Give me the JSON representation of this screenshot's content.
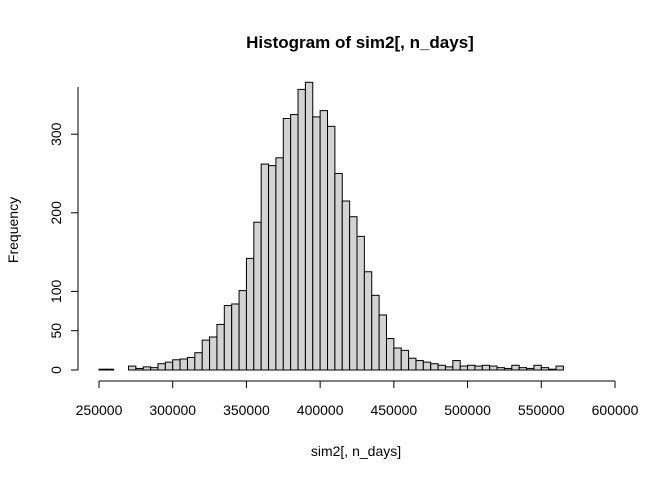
{
  "chart_data": {
    "type": "bar",
    "title": "Histogram of sim2[, n_days]",
    "xlabel": "sim2[, n_days]",
    "ylabel": "Frequency",
    "xlim": [
      250000,
      600000
    ],
    "ylim": [
      0,
      360
    ],
    "x_ticks": [
      250000,
      300000,
      350000,
      400000,
      450000,
      500000,
      550000,
      600000
    ],
    "y_ticks": [
      0,
      50,
      100,
      200,
      300
    ],
    "bin_width": 5000,
    "bin_start": 250000,
    "counts": [
      1,
      1,
      0,
      0,
      5,
      2,
      4,
      3,
      8,
      10,
      13,
      14,
      16,
      22,
      38,
      42,
      58,
      82,
      84,
      101,
      142,
      188,
      262,
      260,
      270,
      320,
      325,
      357,
      366,
      322,
      330,
      310,
      250,
      215,
      195,
      170,
      125,
      95,
      70,
      40,
      28,
      25,
      15,
      12,
      10,
      8,
      6,
      4,
      12,
      5,
      6,
      5,
      6,
      5,
      3,
      2,
      6,
      3,
      2,
      6,
      3,
      1,
      5,
      0,
      0,
      0,
      0,
      0,
      0,
      0
    ]
  },
  "colors": {
    "bar_fill": "#d3d3d3",
    "bar_stroke": "#000000"
  }
}
